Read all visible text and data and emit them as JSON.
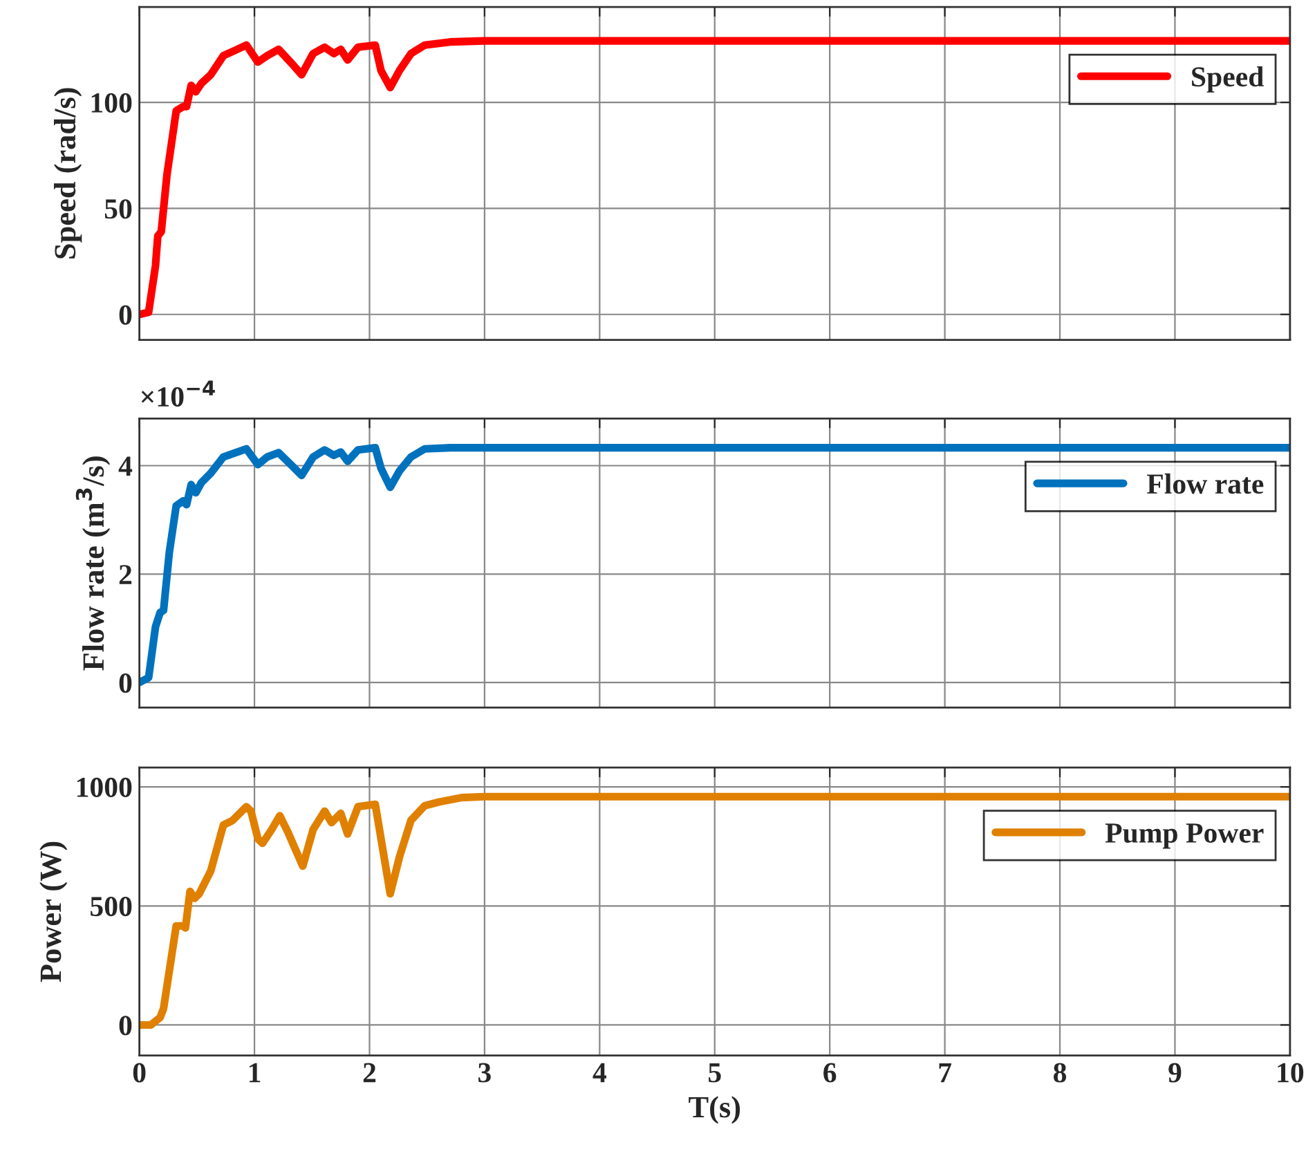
{
  "chart_data": [
    {
      "type": "line",
      "ylabel": "Speed (rad/s)",
      "xlim": [
        0,
        10
      ],
      "xticks": [
        0,
        1,
        2,
        3,
        4,
        5,
        6,
        7,
        8,
        9,
        10
      ],
      "ylim": [
        -12,
        145
      ],
      "yticks": [
        0,
        50,
        100
      ],
      "grid": true,
      "legend": "top right",
      "tick_labels": "y",
      "line_style": "solid",
      "series": [
        {
          "name": "Speed",
          "color": "#ff0000",
          "x": [
            0,
            0.08,
            0.14,
            0.16,
            0.19,
            0.24,
            0.32,
            0.38,
            0.41,
            0.45,
            0.49,
            0.54,
            0.62,
            0.73,
            0.81,
            0.93,
            1.03,
            1.11,
            1.21,
            1.33,
            1.41,
            1.51,
            1.61,
            1.69,
            1.75,
            1.81,
            1.9,
            2.05,
            2.1,
            2.18,
            2.26,
            2.36,
            2.48,
            2.7,
            3,
            10
          ],
          "values": [
            0,
            1,
            23,
            37,
            39,
            66,
            96,
            98,
            98,
            108,
            105,
            109,
            113,
            122,
            124,
            127,
            119,
            122,
            125,
            118,
            113,
            123,
            126,
            123,
            125,
            120,
            126,
            127,
            115,
            107,
            115,
            123,
            127,
            128.5,
            129,
            129
          ]
        }
      ]
    },
    {
      "type": "line",
      "ylabel": "Flow rate (m$^{3}$/s)",
      "annotations": [
        "×10$^{−4}$"
      ],
      "xlim": [
        0,
        10
      ],
      "xticks": [
        0,
        1,
        2,
        3,
        4,
        5,
        6,
        7,
        8,
        9,
        10
      ],
      "ylim": [
        -0.46,
        4.87
      ],
      "yticks": [
        0,
        2,
        4
      ],
      "grid": true,
      "legend": "top right",
      "tick_labels": "y",
      "line_style": "solid",
      "series": [
        {
          "name": "Flow rate",
          "color": "#0072bd",
          "x": [
            0,
            0.08,
            0.14,
            0.18,
            0.21,
            0.26,
            0.32,
            0.38,
            0.41,
            0.45,
            0.49,
            0.54,
            0.62,
            0.73,
            0.81,
            0.93,
            1.03,
            1.11,
            1.21,
            1.33,
            1.41,
            1.51,
            1.61,
            1.69,
            1.75,
            1.81,
            1.9,
            2.05,
            2.1,
            2.18,
            2.26,
            2.36,
            2.48,
            2.7,
            3,
            10
          ],
          "values": [
            0,
            0.09,
            1.03,
            1.29,
            1.33,
            2.4,
            3.26,
            3.35,
            3.28,
            3.65,
            3.5,
            3.69,
            3.86,
            4.16,
            4.22,
            4.31,
            4.02,
            4.16,
            4.24,
            3.99,
            3.82,
            4.16,
            4.29,
            4.19,
            4.25,
            4.08,
            4.29,
            4.33,
            3.95,
            3.6,
            3.9,
            4.16,
            4.31,
            4.33,
            4.33,
            4.33
          ]
        }
      ]
    },
    {
      "type": "line",
      "xlabel": "T(s)",
      "ylabel": "Power (W)",
      "xlim": [
        0,
        10
      ],
      "xticks": [
        0,
        1,
        2,
        3,
        4,
        5,
        6,
        7,
        8,
        9,
        10
      ],
      "ylim": [
        -128,
        1081
      ],
      "yticks": [
        0,
        500,
        1000
      ],
      "grid": true,
      "legend": "top right",
      "line_style": "solid",
      "series": [
        {
          "name": "Pump Power",
          "color": "#e08000",
          "x": [
            0,
            0.1,
            0.18,
            0.21,
            0.32,
            0.38,
            0.4,
            0.44,
            0.48,
            0.52,
            0.62,
            0.73,
            0.81,
            0.93,
            0.97,
            1.03,
            1.07,
            1.15,
            1.22,
            1.29,
            1.35,
            1.42,
            1.51,
            1.61,
            1.67,
            1.75,
            1.81,
            1.9,
            2.05,
            2.1,
            2.18,
            2.26,
            2.36,
            2.48,
            2.6,
            2.8,
            3,
            10
          ],
          "values": [
            0,
            0,
            31,
            69,
            416,
            416,
            407,
            561,
            532,
            551,
            647,
            840,
            859,
            917,
            898,
            782,
            763,
            821,
            879,
            811,
            744,
            667,
            821,
            898,
            850,
            889,
            802,
            917,
            927,
            782,
            551,
            705,
            859,
            921,
            936,
            955,
            959,
            959
          ]
        }
      ]
    }
  ]
}
